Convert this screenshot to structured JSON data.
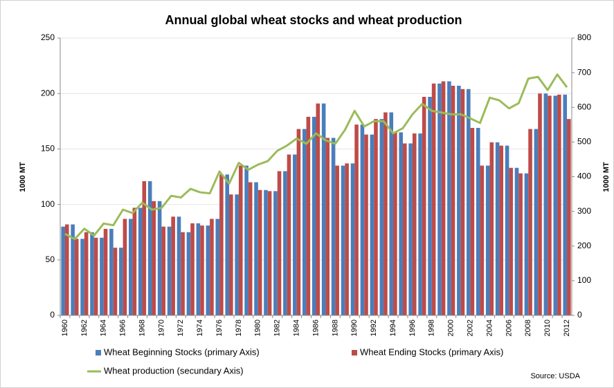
{
  "chart_data": {
    "type": "bar",
    "title": "Annual global wheat stocks and wheat production",
    "y_label": "1000 MT",
    "y2_label": "1000 MT",
    "source": "Source: USDA",
    "categories": [
      "1960",
      null,
      "1962",
      null,
      "1964",
      null,
      "1966",
      null,
      "1968",
      null,
      "1970",
      null,
      "1972",
      null,
      "1974",
      null,
      "1976",
      null,
      "1978",
      null,
      "1980",
      null,
      "1982",
      null,
      "1984",
      null,
      "1986",
      null,
      "1988",
      null,
      "1990",
      null,
      "1992",
      null,
      "1994",
      null,
      "1996",
      null,
      "1998",
      null,
      "2000",
      null,
      "2002",
      null,
      "2004",
      null,
      "2006",
      null,
      "2008",
      null,
      "2010",
      null,
      "2012"
    ],
    "series": [
      {
        "name": "Wheat Beginning Stocks (primary Axis)",
        "color": "#4a7ebb",
        "type": "bar",
        "values": [
          80,
          82,
          69,
          75,
          70,
          78,
          61,
          87,
          97,
          121,
          103,
          80,
          89,
          75,
          83,
          81,
          87,
          127,
          109,
          135,
          120,
          113,
          112,
          130,
          145,
          168,
          179,
          191,
          160,
          135,
          137,
          172,
          163,
          177,
          183,
          165,
          155,
          164,
          197,
          209,
          211,
          207,
          204,
          169,
          135,
          156,
          153,
          133,
          128,
          168,
          200,
          198,
          199
        ]
      },
      {
        "name": "Wheat Ending Stocks (primary Axis)",
        "color": "#be4b48",
        "type": "bar",
        "values": [
          82,
          69,
          75,
          70,
          78,
          61,
          87,
          97,
          121,
          103,
          80,
          89,
          75,
          83,
          81,
          87,
          127,
          109,
          135,
          120,
          113,
          112,
          130,
          145,
          168,
          179,
          191,
          160,
          135,
          137,
          172,
          163,
          177,
          183,
          165,
          155,
          164,
          197,
          209,
          211,
          207,
          204,
          169,
          135,
          156,
          153,
          133,
          128,
          168,
          200,
          198,
          199,
          177
        ]
      },
      {
        "name": "Wheat production (secundary Axis)",
        "color": "#9bbb59",
        "type": "line",
        "axis": "y2",
        "values": [
          235,
          220,
          250,
          230,
          265,
          260,
          305,
          295,
          325,
          305,
          310,
          345,
          340,
          365,
          355,
          352,
          415,
          380,
          440,
          420,
          435,
          445,
          475,
          490,
          510,
          495,
          525,
          505,
          495,
          535,
          590,
          545,
          560,
          560,
          525,
          540,
          580,
          610,
          590,
          585,
          580,
          580,
          568,
          555,
          628,
          620,
          597,
          612,
          683,
          688,
          650,
          695,
          658
        ]
      }
    ],
    "ylim": [
      0,
      250
    ],
    "yticks": [
      0,
      50,
      100,
      150,
      200,
      250
    ],
    "y2lim": [
      0,
      800
    ],
    "y2ticks": [
      0,
      100,
      200,
      300,
      400,
      500,
      600,
      700,
      800
    ],
    "grid": true
  }
}
